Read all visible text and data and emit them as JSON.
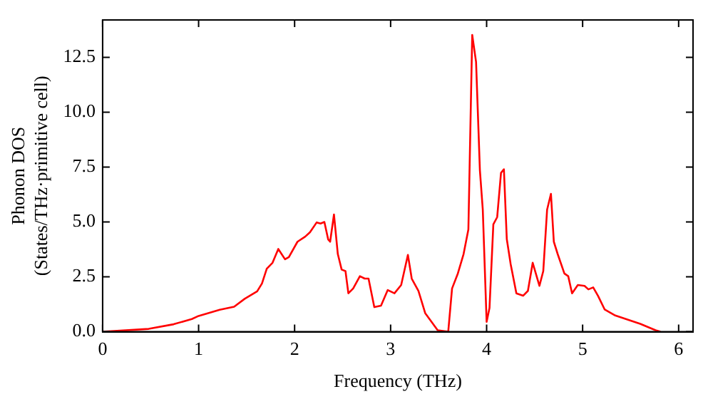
{
  "chart_data": {
    "type": "line",
    "xlabel": "Frequency (THz)",
    "ylabel": [
      "Phonon DOS",
      "(States/THz·primitive cell)"
    ],
    "xlim": [
      0,
      6.15
    ],
    "ylim": [
      0,
      14.2
    ],
    "xticks": [
      0,
      1,
      2,
      3,
      4,
      5,
      6
    ],
    "yticks": [
      {
        "value": 0,
        "label": "0.0"
      },
      {
        "value": 2.5,
        "label": "2.5"
      },
      {
        "value": 5,
        "label": "5.0"
      },
      {
        "value": 7.5,
        "label": "7.5"
      },
      {
        "value": 10,
        "label": "10.0"
      },
      {
        "value": 12.5,
        "label": "12.5"
      }
    ],
    "grid": false,
    "legend": false,
    "marker": "none",
    "line_style": "solid",
    "series": [
      {
        "color": "#ff0000",
        "x": [
          0,
          0.48,
          0.74,
          0.93,
          1.0,
          1.22,
          1.37,
          1.48,
          1.61,
          1.66,
          1.71,
          1.77,
          1.83,
          1.9,
          1.94,
          2.03,
          2.11,
          2.16,
          2.23,
          2.27,
          2.31,
          2.35,
          2.37,
          2.41,
          2.45,
          2.49,
          2.53,
          2.56,
          2.61,
          2.68,
          2.73,
          2.77,
          2.83,
          2.9,
          2.97,
          3.04,
          3.11,
          3.18,
          3.22,
          3.29,
          3.36,
          3.49,
          3.6,
          3.64,
          3.7,
          3.76,
          3.81,
          3.85,
          3.89,
          3.93,
          3.96,
          4.0,
          4.03,
          4.07,
          4.11,
          4.15,
          4.18,
          4.21,
          4.25,
          4.31,
          4.38,
          4.43,
          4.48,
          4.55,
          4.59,
          4.63,
          4.67,
          4.7,
          4.74,
          4.81,
          4.85,
          4.89,
          4.95,
          5.02,
          5.06,
          5.11,
          5.16,
          5.23,
          5.34,
          5.6,
          5.76,
          5.81
        ],
        "values": [
          0,
          0.13,
          0.34,
          0.58,
          0.72,
          1.0,
          1.14,
          1.5,
          1.84,
          2.2,
          2.87,
          3.14,
          3.77,
          3.3,
          3.4,
          4.1,
          4.33,
          4.53,
          4.98,
          4.93,
          5.0,
          4.2,
          4.1,
          5.34,
          3.54,
          2.83,
          2.76,
          1.75,
          1.97,
          2.53,
          2.42,
          2.42,
          1.12,
          1.19,
          1.9,
          1.75,
          2.13,
          3.5,
          2.42,
          1.86,
          0.85,
          0.07,
          0,
          1.97,
          2.65,
          3.54,
          4.66,
          13.52,
          12.29,
          7.35,
          5.56,
          0.45,
          1.08,
          4.89,
          5.22,
          7.24,
          7.4,
          4.22,
          3.09,
          1.75,
          1.64,
          1.86,
          3.14,
          2.09,
          2.76,
          5.56,
          6.28,
          4.1,
          3.54,
          2.65,
          2.53,
          1.75,
          2.13,
          2.09,
          1.93,
          2.02,
          1.64,
          1.01,
          0.74,
          0.36,
          0.07,
          0
        ]
      }
    ]
  }
}
